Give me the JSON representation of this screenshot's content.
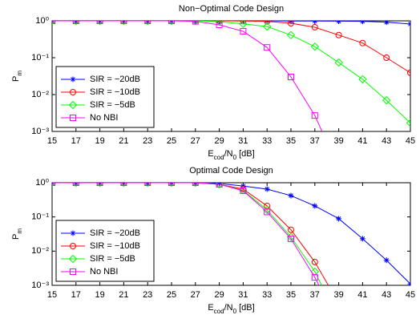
{
  "chart_data": [
    {
      "type": "line",
      "title": "Non−Optimal Code Design",
      "xlabel": [
        "E",
        "cod",
        "/N",
        "0",
        " [dB]"
      ],
      "ylabel": [
        "P",
        "m"
      ],
      "x": [
        15,
        17,
        19,
        21,
        23,
        25,
        27,
        29,
        31,
        33,
        35,
        37,
        39,
        41,
        43,
        45
      ],
      "xlim": [
        15,
        45
      ],
      "xticks": [
        15,
        17,
        19,
        21,
        23,
        25,
        27,
        29,
        31,
        33,
        35,
        37,
        39,
        41,
        43,
        45
      ],
      "yscale": "log",
      "ylim": [
        0.001,
        1
      ],
      "yticks": [
        {
          "value": 0.001,
          "label": "10⁻³"
        },
        {
          "value": 0.01,
          "label": "10⁻²"
        },
        {
          "value": 0.1,
          "label": "10⁻¹"
        },
        {
          "value": 1,
          "label": "10⁰"
        }
      ],
      "legend": "lower left",
      "series": [
        {
          "name": "SIR = −20dB",
          "color": "#0000ff",
          "marker": "asterisk",
          "values": [
            1,
            1,
            1,
            1,
            1,
            1,
            1,
            1,
            1,
            1,
            0.99,
            0.99,
            0.98,
            0.97,
            0.92,
            0.82
          ]
        },
        {
          "name": "SIR = −10dB",
          "color": "#ff0000",
          "marker": "circle",
          "values": [
            1,
            1,
            1,
            1,
            1,
            1,
            1,
            1,
            0.99,
            0.97,
            0.86,
            0.67,
            0.41,
            0.25,
            0.1,
            0.039
          ]
        },
        {
          "name": "SIR = −5dB",
          "color": "#00ff00",
          "marker": "diamond",
          "values": [
            1,
            1,
            1,
            1,
            1,
            1,
            1,
            0.95,
            0.83,
            0.7,
            0.41,
            0.2,
            0.074,
            0.026,
            0.007,
            0.0017
          ]
        },
        {
          "name": "No NBI",
          "color": "#ff00ff",
          "marker": "square",
          "values": [
            1,
            1,
            1,
            1,
            1,
            1,
            0.97,
            0.78,
            0.52,
            0.19,
            0.03,
            0.0027,
            0.0001,
            null,
            null,
            null
          ]
        }
      ]
    },
    {
      "type": "line",
      "title": "Optimal Code Design",
      "xlabel": [
        "E",
        "cod",
        "/N",
        "0",
        " [dB]"
      ],
      "ylabel": [
        "P",
        "m"
      ],
      "x": [
        15,
        17,
        19,
        21,
        23,
        25,
        27,
        29,
        31,
        33,
        35,
        37,
        39,
        41,
        43,
        45
      ],
      "xlim": [
        15,
        45
      ],
      "xticks": [
        15,
        17,
        19,
        21,
        23,
        25,
        27,
        29,
        31,
        33,
        35,
        37,
        39,
        41,
        43,
        45
      ],
      "yscale": "log",
      "ylim": [
        0.001,
        1
      ],
      "yticks": [
        {
          "value": 0.001,
          "label": "10⁻³"
        },
        {
          "value": 0.01,
          "label": "10⁻²"
        },
        {
          "value": 0.1,
          "label": "10⁻¹"
        },
        {
          "value": 1,
          "label": "10⁰"
        }
      ],
      "legend": "lower left",
      "series": [
        {
          "name": "SIR = −20dB",
          "color": "#0000ff",
          "marker": "asterisk",
          "values": [
            1,
            1,
            1,
            1,
            1,
            1,
            1,
            0.95,
            0.8,
            0.65,
            0.42,
            0.21,
            0.089,
            0.023,
            0.0054,
            0.0011
          ]
        },
        {
          "name": "SIR = −10dB",
          "color": "#ff0000",
          "marker": "circle",
          "values": [
            1,
            1,
            1,
            1,
            1,
            1,
            1,
            0.9,
            0.65,
            0.21,
            0.042,
            0.0048,
            0.0003,
            null,
            null,
            null
          ]
        },
        {
          "name": "SIR = −5dB",
          "color": "#00ff00",
          "marker": "diamond",
          "values": [
            1,
            1,
            1,
            1,
            1,
            1,
            1,
            0.9,
            0.6,
            0.16,
            0.026,
            0.0025,
            0.0001,
            null,
            null,
            null
          ]
        },
        {
          "name": "No NBI",
          "color": "#ff00ff",
          "marker": "square",
          "values": [
            1,
            1,
            1,
            1,
            1,
            1,
            1,
            0.9,
            0.58,
            0.14,
            0.023,
            0.0017,
            8e-05,
            null,
            null,
            null
          ]
        }
      ]
    }
  ]
}
